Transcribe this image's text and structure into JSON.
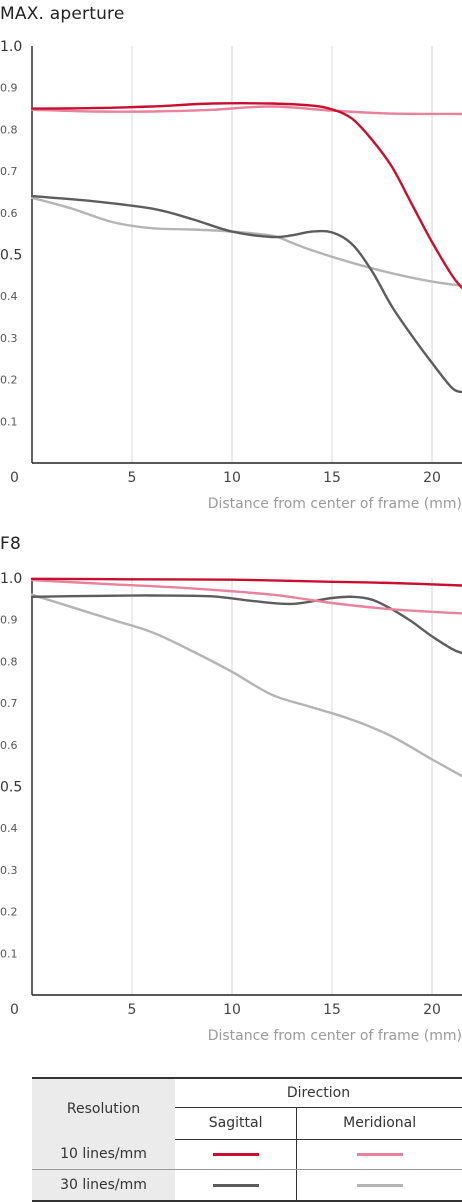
{
  "chart_data": [
    {
      "type": "line",
      "title": "MAX. aperture",
      "xlabel": "Distance from center of frame (mm)",
      "xlim": [
        0,
        21.5
      ],
      "ylim": [
        0,
        1
      ],
      "x_ticks": [
        "5",
        "10",
        "15",
        "20"
      ],
      "y_ticks": [
        "1.0",
        "0.9",
        "0.8",
        "0.7",
        "0.6",
        "0.5",
        "0.4",
        "0.3",
        "0.2",
        "0.1"
      ],
      "origin_label": "0",
      "grid": true,
      "series": [
        {
          "key": "s10",
          "color": "#c8102e",
          "width": 2.4,
          "x": [
            0,
            3,
            6,
            9,
            12,
            14,
            15,
            16,
            17,
            18,
            19,
            20,
            21,
            21.5
          ],
          "y": [
            0.85,
            0.851,
            0.855,
            0.862,
            0.862,
            0.857,
            0.848,
            0.826,
            0.775,
            0.71,
            0.62,
            0.53,
            0.45,
            0.42
          ]
        },
        {
          "key": "m10",
          "color": "#e8829c",
          "width": 2.4,
          "x": [
            0,
            3,
            6,
            9,
            12,
            15,
            18,
            21.5
          ],
          "y": [
            0.847,
            0.843,
            0.843,
            0.847,
            0.855,
            0.845,
            0.838,
            0.837
          ]
        },
        {
          "key": "s30",
          "color": "#5d5d5d",
          "width": 2.4,
          "x": [
            0,
            3,
            6,
            8,
            10,
            12,
            13,
            14,
            15,
            16,
            17,
            18,
            19,
            20,
            21,
            21.5
          ],
          "y": [
            0.64,
            0.628,
            0.61,
            0.585,
            0.555,
            0.542,
            0.546,
            0.555,
            0.553,
            0.525,
            0.46,
            0.375,
            0.305,
            0.24,
            0.18,
            0.17
          ]
        },
        {
          "key": "m30",
          "color": "#b4b4b4",
          "width": 2.4,
          "x": [
            0,
            2,
            4,
            6,
            8,
            10,
            12,
            13,
            14,
            16,
            18,
            20,
            21.5
          ],
          "y": [
            0.636,
            0.61,
            0.578,
            0.563,
            0.56,
            0.555,
            0.545,
            0.528,
            0.51,
            0.48,
            0.455,
            0.435,
            0.425
          ]
        }
      ]
    },
    {
      "type": "line",
      "title": "F8",
      "xlabel": "Distance from center of frame (mm)",
      "xlim": [
        0,
        21.5
      ],
      "ylim": [
        0,
        1
      ],
      "x_ticks": [
        "5",
        "10",
        "15",
        "20"
      ],
      "y_ticks": [
        "1.0",
        "0.9",
        "0.8",
        "0.7",
        "0.6",
        "0.5",
        "0.4",
        "0.3",
        "0.2",
        "0.1"
      ],
      "origin_label": "0",
      "grid": true,
      "series": [
        {
          "key": "s10",
          "color": "#c8102e",
          "width": 2.4,
          "x": [
            0,
            5,
            10,
            15,
            18,
            21.5
          ],
          "y": [
            0.998,
            0.997,
            0.996,
            0.991,
            0.988,
            0.982
          ]
        },
        {
          "key": "m10",
          "color": "#e8829c",
          "width": 2.4,
          "x": [
            0,
            4,
            8,
            12,
            15,
            18,
            21.5
          ],
          "y": [
            0.995,
            0.985,
            0.975,
            0.96,
            0.94,
            0.925,
            0.915
          ]
        },
        {
          "key": "s30",
          "color": "#5d5d5d",
          "width": 2.4,
          "x": [
            0,
            3,
            6,
            9,
            11,
            13,
            15,
            16,
            17,
            18,
            19,
            20,
            21,
            21.5
          ],
          "y": [
            0.955,
            0.957,
            0.958,
            0.956,
            0.945,
            0.938,
            0.952,
            0.955,
            0.948,
            0.925,
            0.895,
            0.86,
            0.83,
            0.82
          ]
        },
        {
          "key": "m30",
          "color": "#b4b4b4",
          "width": 2.4,
          "x": [
            0,
            2,
            4,
            6,
            8,
            10,
            12,
            14,
            16,
            18,
            20,
            21.5
          ],
          "y": [
            0.96,
            0.93,
            0.9,
            0.87,
            0.825,
            0.775,
            0.72,
            0.69,
            0.66,
            0.62,
            0.565,
            0.525
          ]
        }
      ]
    }
  ],
  "legend": {
    "resolution_label": "Resolution",
    "direction_label": "Direction",
    "sagittal_label": "Sagittal",
    "meridional_label": "Meridional",
    "rows": [
      {
        "label": "10 lines/mm",
        "sagittal_color": "#c8102e",
        "meridional_color": "#e8829c"
      },
      {
        "label": "30 lines/mm",
        "sagittal_color": "#5d5d5d",
        "meridional_color": "#b4b4b4"
      }
    ]
  }
}
